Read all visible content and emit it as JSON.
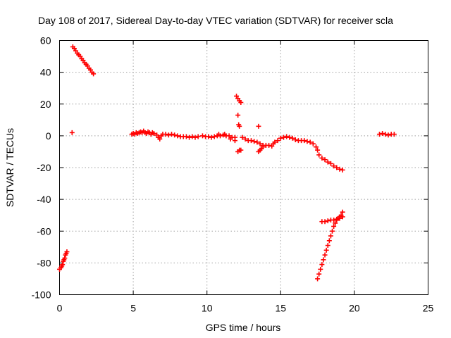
{
  "chart_data": {
    "type": "scatter",
    "title": "Day 108 of 2017, Sidereal Day-to-day VTEC variation (SDTVAR) for receiver scla",
    "xlabel": "GPS time / hours",
    "ylabel": "SDTVAR / TECUs",
    "xlim": [
      0,
      25
    ],
    "ylim": [
      -100,
      60
    ],
    "xticks": [
      0,
      5,
      10,
      15,
      20,
      25
    ],
    "yticks": [
      -100,
      -80,
      -60,
      -40,
      -20,
      0,
      20,
      40,
      60
    ],
    "grid": true,
    "marker": "+",
    "color": "#ff0000",
    "series": [
      {
        "name": "tracks",
        "points": [
          [
            0.0,
            -84
          ],
          [
            0.1,
            -83
          ],
          [
            0.15,
            -82
          ],
          [
            0.2,
            -81
          ],
          [
            0.25,
            -79
          ],
          [
            0.3,
            -78
          ],
          [
            0.35,
            -77
          ],
          [
            0.4,
            -75
          ],
          [
            0.45,
            -74
          ],
          [
            0.5,
            -73
          ],
          [
            0.85,
            2
          ],
          [
            0.9,
            56
          ],
          [
            1.0,
            55
          ],
          [
            1.1,
            53.5
          ],
          [
            1.2,
            52
          ],
          [
            1.3,
            51
          ],
          [
            1.4,
            50
          ],
          [
            1.5,
            48.5
          ],
          [
            1.6,
            47.5
          ],
          [
            1.7,
            46
          ],
          [
            1.8,
            45
          ],
          [
            1.9,
            44
          ],
          [
            2.0,
            42.5
          ],
          [
            2.1,
            41.5
          ],
          [
            2.2,
            40
          ],
          [
            2.3,
            39
          ],
          [
            4.9,
            1
          ],
          [
            5.0,
            1.5
          ],
          [
            5.1,
            1
          ],
          [
            5.2,
            2
          ],
          [
            5.3,
            1.5
          ],
          [
            5.4,
            2
          ],
          [
            5.5,
            2.5
          ],
          [
            5.6,
            2
          ],
          [
            5.7,
            3
          ],
          [
            5.8,
            2
          ],
          [
            5.9,
            1.5
          ],
          [
            6.0,
            2.5
          ],
          [
            6.1,
            2
          ],
          [
            6.2,
            1
          ],
          [
            6.3,
            2
          ],
          [
            6.4,
            1.5
          ],
          [
            6.6,
            0.5
          ],
          [
            6.7,
            -1
          ],
          [
            6.8,
            -2
          ],
          [
            6.9,
            0
          ],
          [
            7.0,
            1
          ],
          [
            7.2,
            1
          ],
          [
            7.4,
            0.5
          ],
          [
            7.6,
            1
          ],
          [
            7.8,
            0.5
          ],
          [
            8.0,
            0
          ],
          [
            8.2,
            -0.5
          ],
          [
            8.4,
            -0.5
          ],
          [
            8.6,
            -0.5
          ],
          [
            8.8,
            -1
          ],
          [
            9.0,
            -0.5
          ],
          [
            9.2,
            -1
          ],
          [
            9.4,
            -0.5
          ],
          [
            9.7,
            0
          ],
          [
            9.9,
            -0.5
          ],
          [
            10.1,
            -0.5
          ],
          [
            10.3,
            -1
          ],
          [
            10.5,
            -0.5
          ],
          [
            10.7,
            0
          ],
          [
            10.9,
            0
          ],
          [
            11.1,
            0.5
          ],
          [
            11.3,
            0
          ],
          [
            11.5,
            0
          ],
          [
            11.7,
            -1
          ],
          [
            11.9,
            -1
          ],
          [
            10.8,
            1
          ],
          [
            11.2,
            1
          ],
          [
            11.6,
            -2
          ],
          [
            11.9,
            -3
          ],
          [
            12.0,
            25
          ],
          [
            12.1,
            23.5
          ],
          [
            12.2,
            22
          ],
          [
            12.3,
            21
          ],
          [
            12.1,
            13
          ],
          [
            12.15,
            7
          ],
          [
            12.2,
            6
          ],
          [
            12.1,
            -10
          ],
          [
            12.2,
            -9
          ],
          [
            12.3,
            -9
          ],
          [
            12.4,
            -1
          ],
          [
            12.6,
            -2
          ],
          [
            12.8,
            -3
          ],
          [
            13.0,
            -3
          ],
          [
            13.2,
            -3.5
          ],
          [
            13.4,
            -4
          ],
          [
            13.5,
            6
          ],
          [
            13.5,
            -10
          ],
          [
            13.6,
            -9
          ],
          [
            13.7,
            -8
          ],
          [
            13.8,
            -7
          ],
          [
            13.6,
            -5
          ],
          [
            13.8,
            -6
          ],
          [
            14.0,
            -6
          ],
          [
            14.2,
            -6
          ],
          [
            14.4,
            -6.5
          ],
          [
            14.5,
            -5
          ],
          [
            14.6,
            -4
          ],
          [
            14.8,
            -3
          ],
          [
            15.0,
            -1.5
          ],
          [
            15.2,
            -1
          ],
          [
            15.4,
            -0.5
          ],
          [
            15.6,
            -1
          ],
          [
            15.8,
            -1.5
          ],
          [
            16.0,
            -2.5
          ],
          [
            16.2,
            -3
          ],
          [
            16.4,
            -3
          ],
          [
            16.6,
            -3
          ],
          [
            16.8,
            -3.5
          ],
          [
            17.0,
            -4
          ],
          [
            17.2,
            -5
          ],
          [
            17.4,
            -7
          ],
          [
            17.5,
            -9
          ],
          [
            17.6,
            -12
          ],
          [
            17.8,
            -14
          ],
          [
            18.0,
            -15
          ],
          [
            18.2,
            -16.5
          ],
          [
            18.4,
            -17.5
          ],
          [
            18.6,
            -19
          ],
          [
            18.8,
            -20
          ],
          [
            19.0,
            -21
          ],
          [
            19.2,
            -21.5
          ],
          [
            17.5,
            -90
          ],
          [
            17.6,
            -87
          ],
          [
            17.7,
            -84
          ],
          [
            17.8,
            -81
          ],
          [
            17.9,
            -78
          ],
          [
            18.0,
            -75
          ],
          [
            18.1,
            -72
          ],
          [
            18.2,
            -69
          ],
          [
            18.3,
            -66
          ],
          [
            18.4,
            -63
          ],
          [
            18.5,
            -60
          ],
          [
            18.6,
            -57
          ],
          [
            18.7,
            -55
          ],
          [
            18.8,
            -53
          ],
          [
            18.9,
            -52
          ],
          [
            19.0,
            -51
          ],
          [
            19.1,
            -50
          ],
          [
            19.2,
            -48
          ],
          [
            17.8,
            -54
          ],
          [
            18.0,
            -54
          ],
          [
            18.2,
            -53.5
          ],
          [
            18.4,
            -53
          ],
          [
            18.6,
            -53
          ],
          [
            18.8,
            -52.5
          ],
          [
            19.0,
            -52
          ],
          [
            19.2,
            -51
          ],
          [
            21.7,
            1
          ],
          [
            21.9,
            1.5
          ],
          [
            22.1,
            1
          ],
          [
            22.3,
            0.5
          ],
          [
            22.5,
            1
          ],
          [
            22.7,
            1
          ]
        ]
      }
    ]
  }
}
